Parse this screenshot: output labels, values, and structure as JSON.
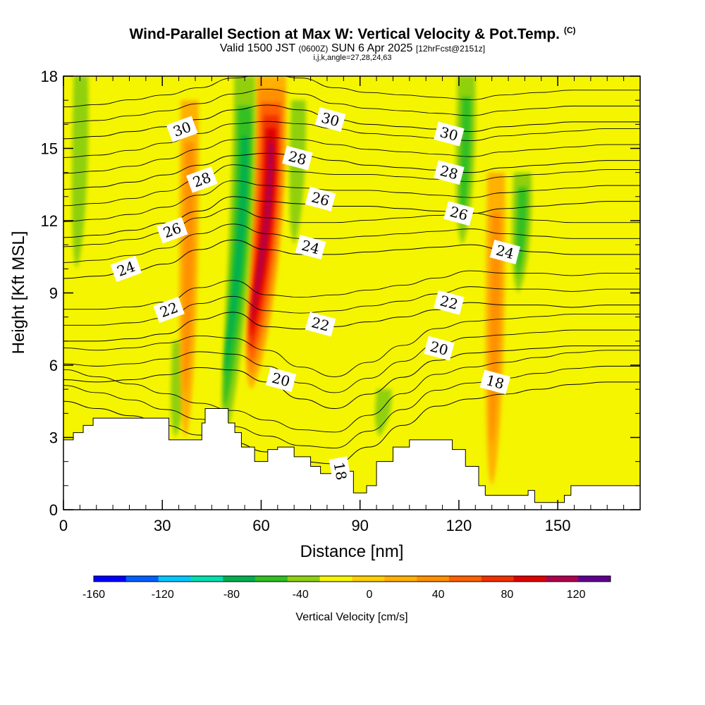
{
  "chart_data": {
    "type": "heatmap",
    "title": "Wind-Parallel Section at Max W: Vertical Velocity & Pot.Temp.",
    "title_mark": "(C)",
    "subtitle": {
      "valid": "Valid 1500 JST",
      "utc": "(0600Z)",
      "date": "SUN 6 Apr 2025",
      "fcst": "[12hrFcst@2151z]"
    },
    "subtitle2": "i,j,k,angle=27,28,24,63",
    "xlabel": "Distance [nm]",
    "ylabel": "Height [Kft MSL]",
    "xlim": [
      0,
      175
    ],
    "ylim": [
      0,
      18
    ],
    "x_ticks": [
      "0",
      "30",
      "60",
      "90",
      "120",
      "150"
    ],
    "y_ticks": [
      "0",
      "3",
      "6",
      "9",
      "12",
      "15",
      "18"
    ],
    "colorbar": {
      "label": "Vertical Velocity [cm/s]",
      "range": [
        -160,
        140
      ],
      "step": 20,
      "tick_labels": [
        "-160",
        "-120",
        "-80",
        "-40",
        "0",
        "40",
        "80",
        "120"
      ],
      "colors": [
        "#0000ff",
        "#0060ff",
        "#00c8ff",
        "#00e0b0",
        "#00b050",
        "#30c020",
        "#90d010",
        "#f5f500",
        "#ffd000",
        "#ffb000",
        "#ff9000",
        "#ff6000",
        "#f03000",
        "#e00000",
        "#b00050",
        "#600090"
      ]
    },
    "fields": {
      "filled": "vertical velocity (cm/s)",
      "contour": "potential temperature"
    },
    "contour_labels": [
      {
        "label": "30",
        "x": 36,
        "y": 15.8
      },
      {
        "label": "30",
        "x": 81,
        "y": 16.2
      },
      {
        "label": "30",
        "x": 117,
        "y": 15.6
      },
      {
        "label": "28",
        "x": 42,
        "y": 13.7
      },
      {
        "label": "28",
        "x": 71,
        "y": 14.6
      },
      {
        "label": "28",
        "x": 117,
        "y": 14.0
      },
      {
        "label": "26",
        "x": 33,
        "y": 11.6
      },
      {
        "label": "26",
        "x": 78,
        "y": 12.9
      },
      {
        "label": "26",
        "x": 120,
        "y": 12.3
      },
      {
        "label": "24",
        "x": 19,
        "y": 10.0
      },
      {
        "label": "24",
        "x": 75,
        "y": 10.9
      },
      {
        "label": "24",
        "x": 134,
        "y": 10.7
      },
      {
        "label": "22",
        "x": 32,
        "y": 8.3
      },
      {
        "label": "22",
        "x": 78,
        "y": 7.7
      },
      {
        "label": "22",
        "x": 117,
        "y": 8.6
      },
      {
        "label": "20",
        "x": 66,
        "y": 5.4
      },
      {
        "label": "20",
        "x": 114,
        "y": 6.7
      },
      {
        "label": "18",
        "x": 131,
        "y": 5.3
      },
      {
        "label": "18",
        "x": 84,
        "y": 1.6
      }
    ],
    "isentropes": [
      {
        "theta": 18,
        "y": [
          4.5,
          4.2,
          3.9,
          3.5,
          3.1,
          2.8,
          2.4,
          2.0,
          1.9,
          2.6,
          3.5,
          4.3,
          4.6,
          4.8,
          5.0,
          5.2,
          5.3,
          5.3
        ]
      },
      {
        "theta": 20,
        "y": [
          5.4,
          5.3,
          5.4,
          5.6,
          5.9,
          5.8,
          5.3,
          4.6,
          4.2,
          4.8,
          5.5,
          6.2,
          6.5,
          6.6,
          6.7,
          6.8,
          6.8,
          6.8
        ]
      },
      {
        "theta": 22,
        "y": [
          7.0,
          7.0,
          7.1,
          7.3,
          7.9,
          8.2,
          7.6,
          7.5,
          7.6,
          7.8,
          8.0,
          8.3,
          8.6,
          8.5,
          8.5,
          8.4,
          8.5,
          8.5
        ]
      },
      {
        "theta": 24,
        "y": [
          9.6,
          9.7,
          9.9,
          10.2,
          10.8,
          11.2,
          10.8,
          10.6,
          10.6,
          10.7,
          10.8,
          10.9,
          11.0,
          10.8,
          10.7,
          10.6,
          10.6,
          10.6
        ]
      },
      {
        "theta": 26,
        "y": [
          11.3,
          11.4,
          11.6,
          11.9,
          12.4,
          13.0,
          12.8,
          12.7,
          12.6,
          12.6,
          12.5,
          12.4,
          12.3,
          12.5,
          12.6,
          12.7,
          12.8,
          12.8
        ]
      },
      {
        "theta": 28,
        "y": [
          13.3,
          13.4,
          13.6,
          13.9,
          14.3,
          14.7,
          14.8,
          14.7,
          14.5,
          14.3,
          14.2,
          14.1,
          14.0,
          14.2,
          14.3,
          14.4,
          14.5,
          14.5
        ]
      },
      {
        "theta": 30,
        "y": [
          15.4,
          15.5,
          15.7,
          15.9,
          16.2,
          16.6,
          16.8,
          16.6,
          16.2,
          16.0,
          15.9,
          15.8,
          15.7,
          15.9,
          16.0,
          16.1,
          16.1,
          16.1
        ]
      }
    ],
    "terrain_kft": [
      [
        0,
        2.9
      ],
      [
        3,
        3.2
      ],
      [
        6,
        3.5
      ],
      [
        9,
        3.8
      ],
      [
        30,
        3.8
      ],
      [
        32,
        2.9
      ],
      [
        38,
        2.9
      ],
      [
        42,
        3.6
      ],
      [
        43,
        4.2
      ],
      [
        49,
        4.2
      ],
      [
        50,
        3.6
      ],
      [
        52,
        3.2
      ],
      [
        54,
        2.6
      ],
      [
        58,
        2.0
      ],
      [
        62,
        2.5
      ],
      [
        65,
        2.6
      ],
      [
        70,
        2.2
      ],
      [
        75,
        1.8
      ],
      [
        78,
        1.5
      ],
      [
        86,
        1.6
      ],
      [
        88,
        0.7
      ],
      [
        92,
        1.0
      ],
      [
        95,
        2.0
      ],
      [
        100,
        2.6
      ],
      [
        105,
        2.9
      ],
      [
        116,
        2.9
      ],
      [
        118,
        2.5
      ],
      [
        122,
        1.8
      ],
      [
        126,
        1.0
      ],
      [
        128,
        0.6
      ],
      [
        141,
        0.8
      ],
      [
        143,
        0.3
      ],
      [
        149,
        0.3
      ],
      [
        152,
        0.6
      ],
      [
        154,
        1.0
      ],
      [
        175,
        1.0
      ]
    ],
    "w_features_cm_s": [
      {
        "kind": "updraft core",
        "x": 57,
        "y_bottom": 5,
        "y_top": 18,
        "peak": 130
      },
      {
        "kind": "downdraft band",
        "x": 49,
        "y_bottom": 3,
        "y_top": 18,
        "peak": -70
      },
      {
        "kind": "downdraft",
        "x": 70,
        "y_bottom": 11,
        "y_top": 17,
        "peak": -35
      },
      {
        "kind": "downdraft",
        "x": 121,
        "y_bottom": 11,
        "y_top": 18,
        "peak": -45
      },
      {
        "kind": "downdraft",
        "x": 138,
        "y_bottom": 9,
        "y_top": 14,
        "peak": -40
      },
      {
        "kind": "downdraft",
        "x": 96,
        "y_bottom": 3,
        "y_top": 5,
        "peak": -30
      },
      {
        "kind": "downdraft",
        "x": 4,
        "y_bottom": 10,
        "y_top": 18,
        "peak": -30
      },
      {
        "kind": "downdraft",
        "x": 34,
        "y_bottom": 3,
        "y_top": 7,
        "peak": -30
      },
      {
        "kind": "updraft",
        "x": 37,
        "y_bottom": 3,
        "y_top": 17,
        "peak": 50
      },
      {
        "kind": "updraft",
        "x": 130,
        "y_bottom": 1,
        "y_top": 14,
        "peak": 50
      }
    ]
  }
}
